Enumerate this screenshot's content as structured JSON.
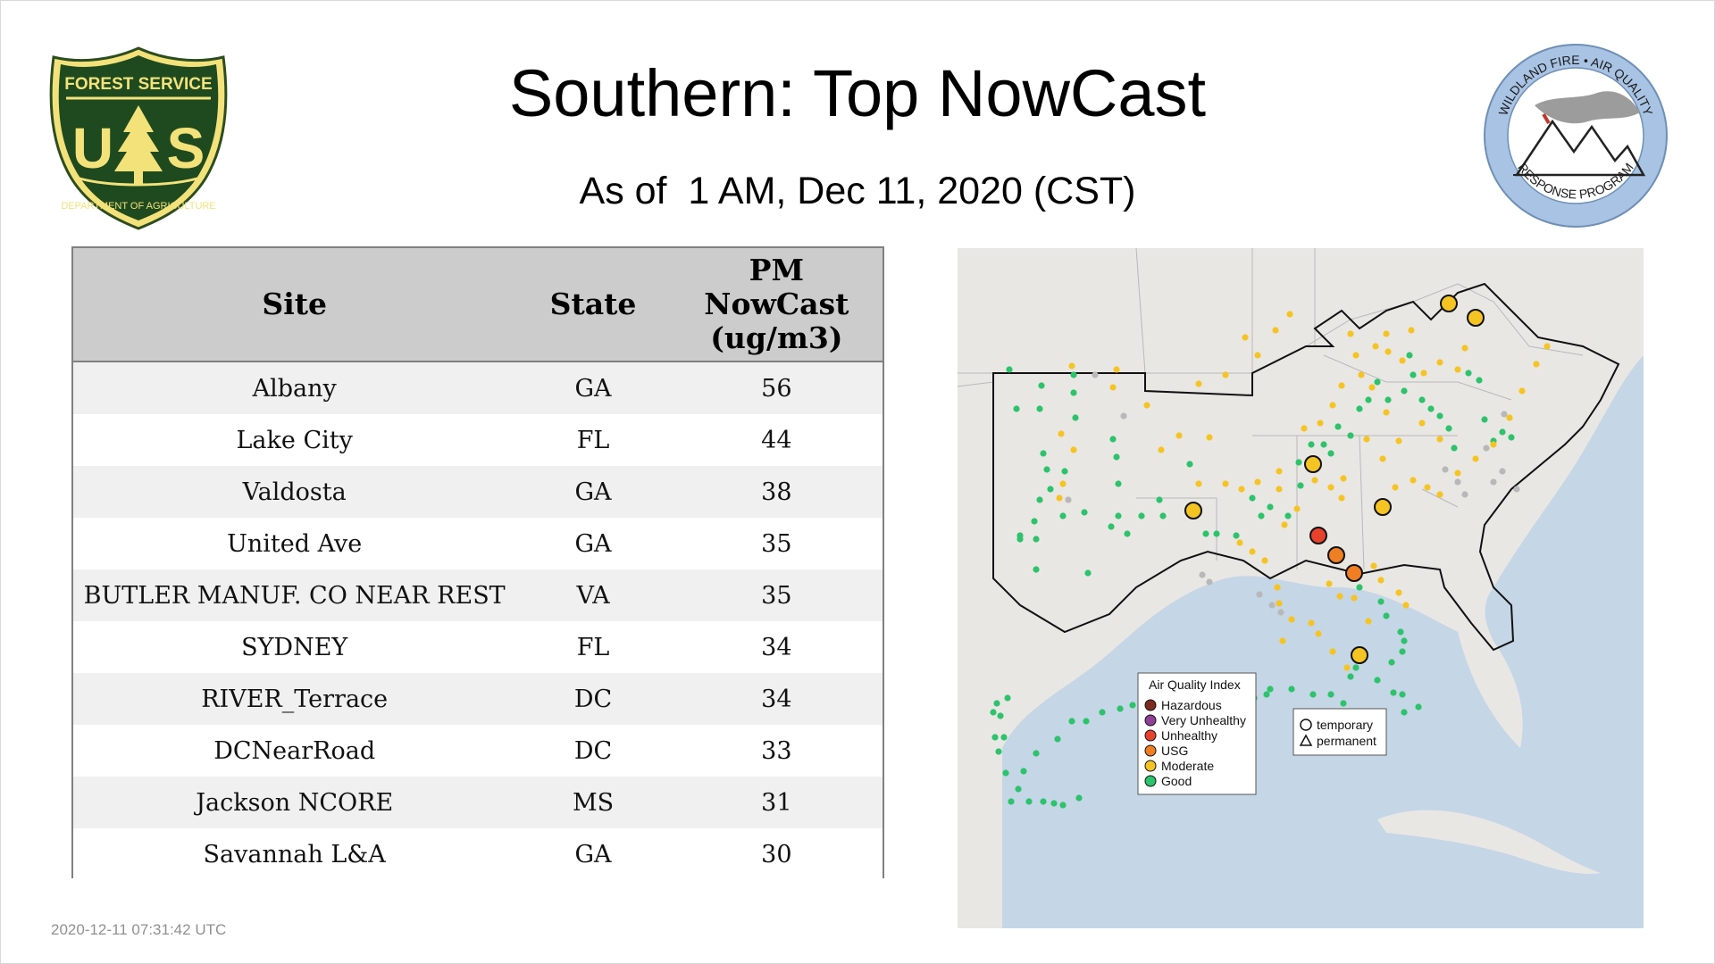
{
  "header": {
    "title": "Southern: Top NowCast",
    "subtitle": "As of  1 AM, Dec 11, 2020 (CST)"
  },
  "logos": {
    "forest_service": {
      "icon": "usda-forest-service-shield-icon",
      "text_top": "FOREST SERVICE",
      "text_bottom": "DEPARTMENT OF AGRICULTURE",
      "letters": "U S"
    },
    "wildland_fire": {
      "icon": "wildland-fire-air-quality-seal-icon",
      "text_top": "WILDLAND FIRE • AIR QUALITY",
      "text_bottom": "RESPONSE PROGRAM"
    }
  },
  "table": {
    "headers": {
      "site": "Site",
      "state": "State",
      "pm": [
        "PM",
        "NowCast",
        "(ug/m3)"
      ]
    },
    "rows": [
      {
        "site": "Albany",
        "state": "GA",
        "value": "56"
      },
      {
        "site": "Lake City",
        "state": "FL",
        "value": "44"
      },
      {
        "site": "Valdosta",
        "state": "GA",
        "value": "38"
      },
      {
        "site": "United Ave",
        "state": "GA",
        "value": "35"
      },
      {
        "site": "BUTLER MANUF. CO NEAR REST",
        "state": "VA",
        "value": "35"
      },
      {
        "site": "SYDNEY",
        "state": "FL",
        "value": "34"
      },
      {
        "site": "RIVER_Terrace",
        "state": "DC",
        "value": "34"
      },
      {
        "site": "DCNearRoad",
        "state": "DC",
        "value": "33"
      },
      {
        "site": "Jackson NCORE",
        "state": "MS",
        "value": "31"
      },
      {
        "site": "Savannah L&A",
        "state": "GA",
        "value": "30"
      }
    ]
  },
  "map": {
    "legend": {
      "title": "Air Quality Index",
      "categories": [
        {
          "label": "Hazardous",
          "color": "#7e2a21"
        },
        {
          "label": "Very Unhealthy",
          "color": "#8f3f97"
        },
        {
          "label": "Unhealthy",
          "color": "#e8412c"
        },
        {
          "label": "USG",
          "color": "#f07e22"
        },
        {
          "label": "Moderate",
          "color": "#f5c423"
        },
        {
          "label": "Good",
          "color": "#2cc36b"
        }
      ]
    },
    "shape_legend": {
      "temporary": "temporary",
      "permanent": "permanent"
    },
    "colors": {
      "land": "#e9e7e4",
      "water": "#c5d6e6",
      "no_data": "#b8b8b8"
    }
  },
  "footer": {
    "timestamp": "2020-12-11 07:31:42 UTC"
  }
}
